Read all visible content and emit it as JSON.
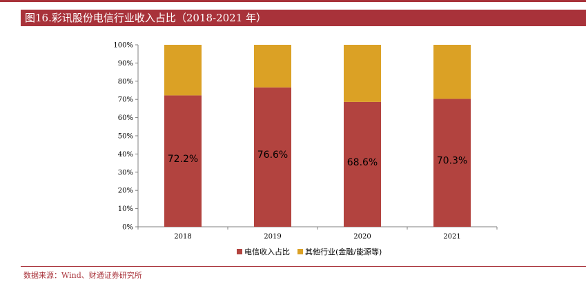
{
  "header": {
    "title": "图16.彩讯股份电信行业收入占比（2018-2021 年）"
  },
  "footer": {
    "source": "数据来源：Wind、财通证券研究所"
  },
  "colors": {
    "accent": "#a8323a",
    "series_telecom": "#b2433f",
    "series_other": "#dba125"
  },
  "chart_data": {
    "type": "bar",
    "stacked": true,
    "title": "彩讯股份电信行业收入占比（2018-2021 年）",
    "categories": [
      "2018",
      "2019",
      "2020",
      "2021"
    ],
    "series": [
      {
        "name": "电信收入占比",
        "values": [
          72.2,
          76.6,
          68.6,
          70.3
        ],
        "labels": [
          "72.2%",
          "76.6%",
          "68.6%",
          "70.3%"
        ]
      },
      {
        "name": "其他行业(金融/能源等)",
        "values": [
          27.8,
          23.4,
          31.4,
          29.7
        ]
      }
    ],
    "ylim": [
      0,
      100
    ],
    "yticks": [
      "0%",
      "10%",
      "20%",
      "30%",
      "40%",
      "50%",
      "60%",
      "70%",
      "80%",
      "90%",
      "100%"
    ],
    "xlabel": "",
    "ylabel": "",
    "legend": "bottom-center",
    "grid": false
  }
}
